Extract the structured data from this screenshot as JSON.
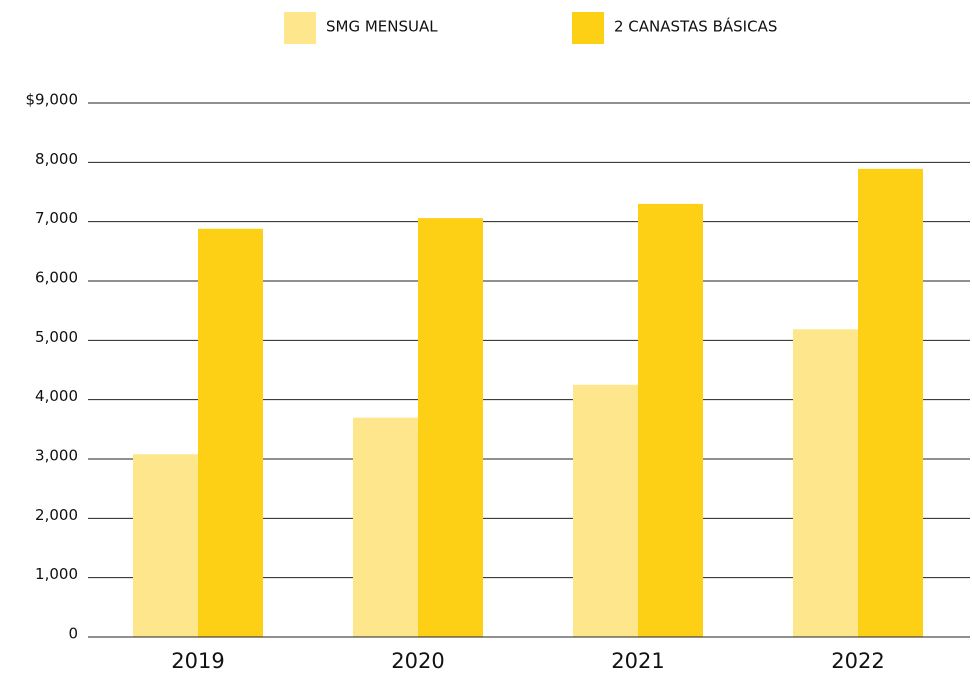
{
  "chart_data": {
    "type": "bar",
    "categories": [
      "2019",
      "2020",
      "2021",
      "2022"
    ],
    "series": [
      {
        "name": "SMG MENSUAL",
        "color": "#fee68c",
        "values": [
          3080,
          3697,
          4251,
          5186
        ]
      },
      {
        "name": "2 CANASTAS BÁSICAS",
        "color": "#fdd016",
        "values": [
          6880,
          7060,
          7300,
          7890
        ]
      }
    ],
    "ylim": [
      0,
      9000
    ],
    "yticks": [
      0,
      {
        "value": 1000,
        "label": "1,000"
      },
      {
        "value": 2000,
        "label": "2,000"
      },
      {
        "value": 3000,
        "label": "3,000"
      },
      {
        "value": 4000,
        "label": "4,000"
      },
      {
        "value": 5000,
        "label": "5,000"
      },
      {
        "value": 6000,
        "label": "6,000"
      },
      {
        "value": 7000,
        "label": "7,000"
      },
      {
        "value": 8000,
        "label": "8,000"
      },
      {
        "value": 9000,
        "label": "$9,000"
      }
    ],
    "grid": true
  }
}
